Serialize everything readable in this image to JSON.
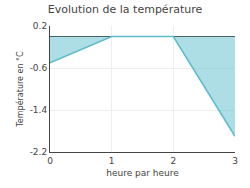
{
  "chart_data": {
    "type": "area",
    "title": "Evolution de la température",
    "xlabel": "heure par heure",
    "ylabel": "Température en °C",
    "x": [
      0,
      1,
      2,
      3
    ],
    "values": [
      -0.5,
      0.0,
      0.0,
      -1.9
    ],
    "color": "#5bbccc",
    "xlim": [
      0,
      3
    ],
    "ylim": [
      -2.2,
      0.2
    ],
    "xticks": [
      0,
      1,
      2,
      3
    ],
    "yticks": [
      -2.2,
      -1.4,
      -0.6,
      0.2
    ],
    "grid": true
  }
}
